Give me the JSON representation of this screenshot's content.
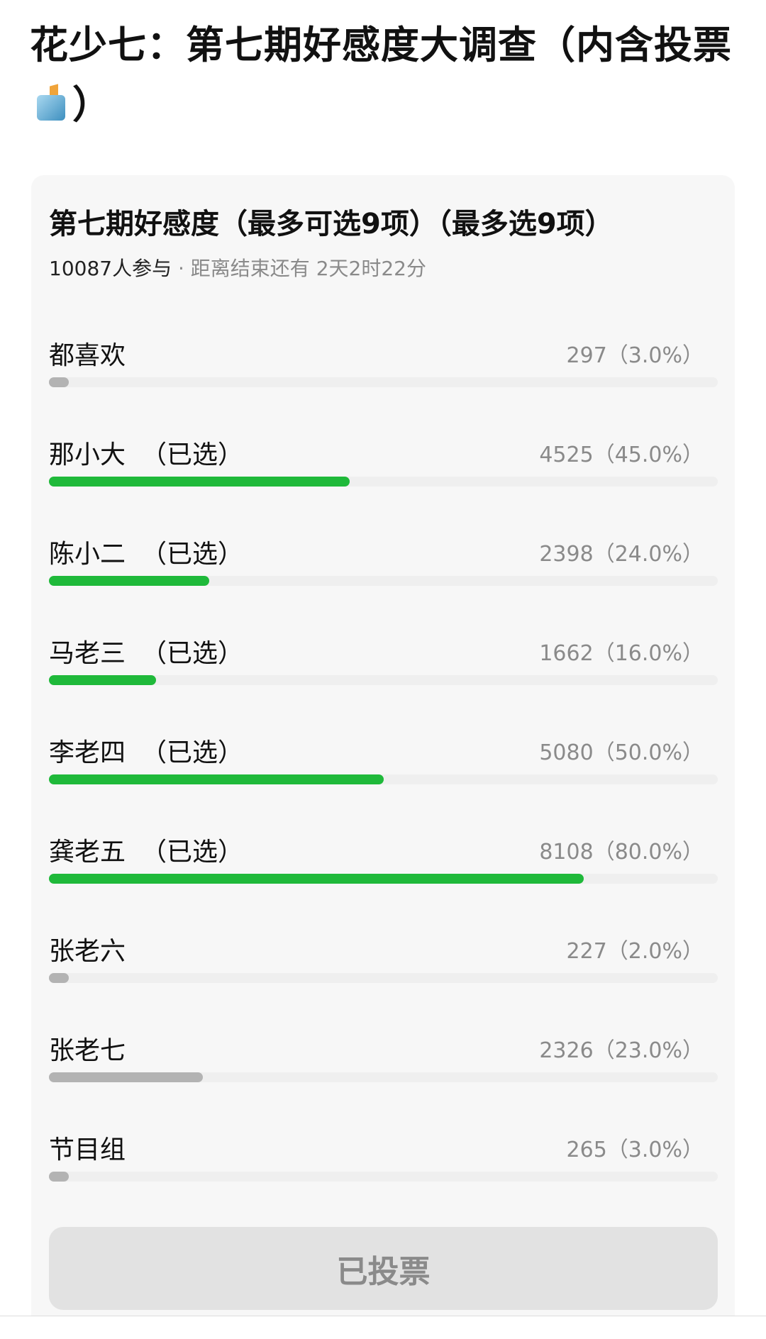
{
  "post": {
    "title_before_icon": "花少七：第七期好感度大调查（内含投票",
    "title_icon": "ballot-box-icon",
    "title_after_icon": "）"
  },
  "poll": {
    "title": "第七期好感度（最多可选9项）（最多选9项）",
    "participants": "10087人参与",
    "separator": "·",
    "time_left": "距离结束还有 2天2时22分",
    "colors": {
      "selected": "#1fb93a",
      "unselected": "#b3b3b3",
      "track": "#efefef"
    },
    "options": [
      {
        "label": "都喜欢",
        "selected_tag": "",
        "votes_text": "297（3.0%）",
        "percent": 3.0,
        "selected": false
      },
      {
        "label": "那小大",
        "selected_tag": "（已选）",
        "votes_text": "4525（45.0%）",
        "percent": 45.0,
        "selected": true
      },
      {
        "label": "陈小二",
        "selected_tag": "（已选）",
        "votes_text": "2398（24.0%）",
        "percent": 24.0,
        "selected": true
      },
      {
        "label": "马老三",
        "selected_tag": "（已选）",
        "votes_text": "1662（16.0%）",
        "percent": 16.0,
        "selected": true
      },
      {
        "label": "李老四",
        "selected_tag": "（已选）",
        "votes_text": "5080（50.0%）",
        "percent": 50.0,
        "selected": true
      },
      {
        "label": "龚老五",
        "selected_tag": "（已选）",
        "votes_text": "8108（80.0%）",
        "percent": 80.0,
        "selected": true
      },
      {
        "label": "张老六",
        "selected_tag": "",
        "votes_text": "227（2.0%）",
        "percent": 2.0,
        "selected": false
      },
      {
        "label": "张老七",
        "selected_tag": "",
        "votes_text": "2326（23.0%）",
        "percent": 23.0,
        "selected": false
      },
      {
        "label": "节目组",
        "selected_tag": "",
        "votes_text": "265（3.0%）",
        "percent": 3.0,
        "selected": false
      }
    ],
    "button_label": "已投票"
  }
}
